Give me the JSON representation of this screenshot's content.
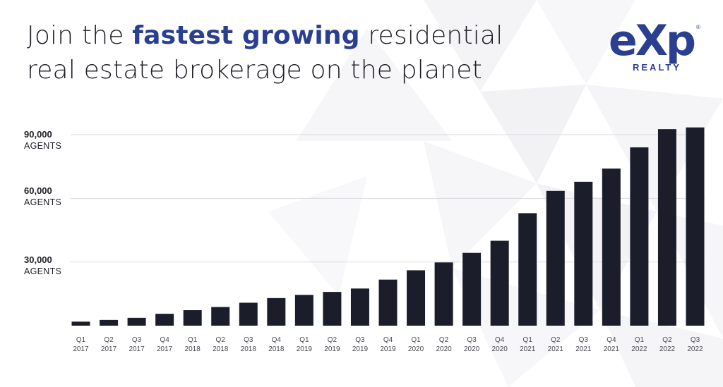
{
  "headline": {
    "before": "Join the ",
    "highlight": "fastest growing",
    "after": " residential",
    "line2": "real estate brokerage on the planet"
  },
  "logo": {
    "wordmark": "eXp",
    "subtitle": "REALTY",
    "registered": "®"
  },
  "colors": {
    "bar": "#1c1d2b",
    "highlight": "#2a3f8f",
    "gridline": "#d9d9de"
  },
  "y_axis_labels": [
    {
      "value": "90,000",
      "unit": "AGENTS"
    },
    {
      "value": "60,000",
      "unit": "AGENTS"
    },
    {
      "value": "30,000",
      "unit": "AGENTS"
    }
  ],
  "chart_data": {
    "type": "bar",
    "title": "",
    "xlabel": "",
    "ylabel": "",
    "categories": [
      [
        "Q1",
        "2017"
      ],
      [
        "Q2",
        "2017"
      ],
      [
        "Q3",
        "2017"
      ],
      [
        "Q4",
        "2017"
      ],
      [
        "Q1",
        "2018"
      ],
      [
        "Q2",
        "2018"
      ],
      [
        "Q3",
        "2018"
      ],
      [
        "Q4",
        "2018"
      ],
      [
        "Q1",
        "2019"
      ],
      [
        "Q2",
        "2019"
      ],
      [
        "Q3",
        "2019"
      ],
      [
        "Q4",
        "2019"
      ],
      [
        "Q1",
        "2020"
      ],
      [
        "Q2",
        "2020"
      ],
      [
        "Q3",
        "2020"
      ],
      [
        "Q4",
        "2020"
      ],
      [
        "Q1",
        "2021"
      ],
      [
        "Q2",
        "2021"
      ],
      [
        "Q3",
        "2021"
      ],
      [
        "Q4",
        "2021"
      ],
      [
        "Q1",
        "2022"
      ],
      [
        "Q2",
        "2022"
      ],
      [
        "Q3",
        "2022"
      ]
    ],
    "values": [
      1900,
      2700,
      3700,
      5600,
      7300,
      8800,
      10800,
      13000,
      14500,
      15900,
      17500,
      21700,
      26100,
      29800,
      34300,
      40000,
      53000,
      63500,
      67800,
      74000,
      84000,
      92600,
      93400
    ],
    "ylim": [
      0,
      90000
    ],
    "gridlines": [
      30000,
      60000,
      90000
    ],
    "grid": true,
    "legend": "none"
  }
}
